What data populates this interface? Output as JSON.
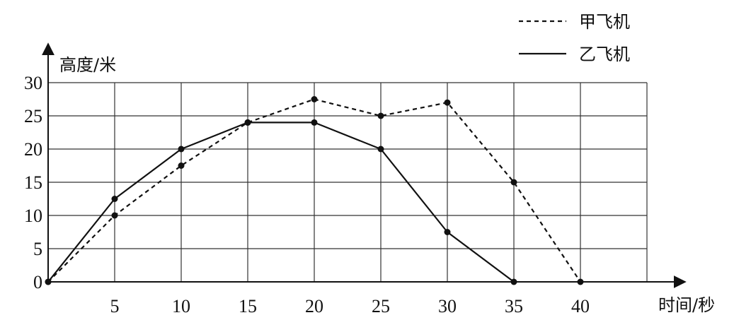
{
  "chart_data": {
    "type": "line",
    "ylabel": "高度/米",
    "xlabel": "时间/秒",
    "xlim": [
      0,
      45
    ],
    "ylim": [
      0,
      30
    ],
    "x_ticks": [
      5,
      10,
      15,
      20,
      25,
      30,
      35,
      40
    ],
    "y_ticks": [
      0,
      5,
      10,
      15,
      20,
      25,
      30
    ],
    "grid": true,
    "legend": "top-right",
    "series": [
      {
        "name": "甲飞机",
        "style": "dashed",
        "color": "#111111",
        "points": [
          [
            0,
            0
          ],
          [
            5,
            10
          ],
          [
            10,
            17.5
          ],
          [
            15,
            24
          ],
          [
            20,
            27.5
          ],
          [
            25,
            25
          ],
          [
            30,
            27
          ],
          [
            35,
            15
          ],
          [
            40,
            0
          ]
        ]
      },
      {
        "name": "乙飞机",
        "style": "solid",
        "color": "#111111",
        "points": [
          [
            0,
            0
          ],
          [
            5,
            12.5
          ],
          [
            10,
            20
          ],
          [
            15,
            24
          ],
          [
            20,
            24
          ],
          [
            25,
            20
          ],
          [
            30,
            7.5
          ],
          [
            35,
            0
          ]
        ]
      }
    ]
  }
}
